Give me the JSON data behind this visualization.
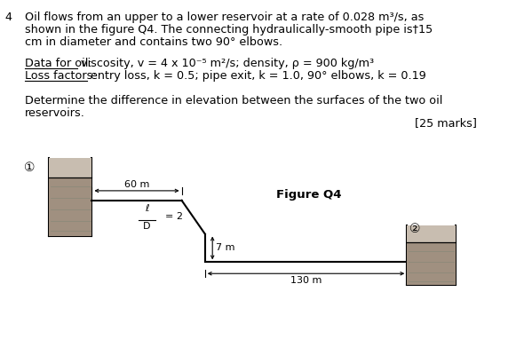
{
  "question_number": "4",
  "main_text_line1": "Oil flows from an upper to a lower reservoir at a rate of 0.028 m³/s, as",
  "main_text_line2": "shown in the figure Q4. The connecting hydraulically-smooth pipe is†15",
  "main_text_line3": "cm in diameter and contains two 90° elbows.",
  "data_label": "Data for oil:",
  "data_text": " viscosity, v = 4 x 10⁻⁵ m²/s; density, ρ = 900 kg/m³",
  "loss_label": "Loss factors:",
  "loss_text": " entry loss, k = 0.5; pipe exit, k = 1.0, 90° elbows, k = 0.19",
  "determine_text_line1": "Determine the difference in elevation between the surfaces of the two oil",
  "determine_text_line2": "reservoirs.",
  "marks_text": "[25 marks]",
  "figure_label": "Figure Q4",
  "dim_60m": "60 m",
  "dim_7m": "7 m",
  "dim_130m": "130 m",
  "ratio_label": "ℓ\n― = 2",
  "ratio_line1": "ℓ",
  "ratio_line2": "D",
  "ratio_val": "= 2",
  "node1_label": "①",
  "node2_label": "②",
  "bg_color": "#ffffff",
  "reservoir_fill": "#a09080",
  "reservoir_fill_light": "#c8bdb0",
  "text_color": "#000000",
  "font_size_main": 9.2,
  "font_size_small": 8.0
}
